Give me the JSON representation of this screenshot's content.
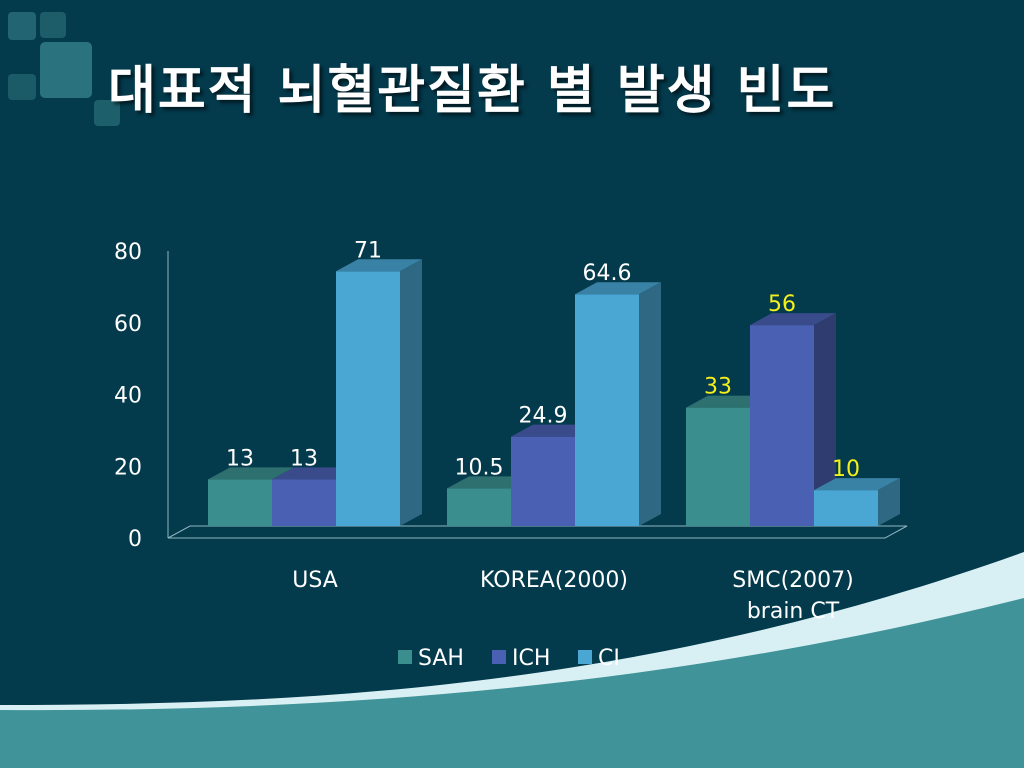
{
  "slide": {
    "title": "대표적 뇌혈관질환 별 발생 빈도"
  },
  "colors": {
    "background": "#033a4c",
    "SAH": "#3b8e8e",
    "ICH": "#4a60b3",
    "CI": "#4aa7d3",
    "label_default": "#ffffff",
    "label_highlight": "#f4f01c"
  },
  "chart_data": {
    "type": "bar",
    "style": "3d-clustered-column",
    "categories": [
      "USA",
      "KOREA(2000)",
      "SMC(2007)\nbrain CT"
    ],
    "series": [
      {
        "name": "SAH",
        "values": [
          13,
          10.5,
          33
        ]
      },
      {
        "name": "ICH",
        "values": [
          13,
          24.9,
          56
        ]
      },
      {
        "name": "CI",
        "values": [
          71,
          64.6,
          10
        ]
      }
    ],
    "data_labels": [
      [
        "13",
        "13",
        "71"
      ],
      [
        "10.5",
        "24.9",
        "64.6"
      ],
      [
        "33",
        "56",
        "10"
      ]
    ],
    "highlighted_category": "SMC(2007)\nbrain CT",
    "ylim": [
      0,
      80
    ],
    "yticks": [
      0,
      20,
      40,
      60,
      80
    ],
    "grid": false,
    "legend": "bottom",
    "title": "",
    "xlabel": "",
    "ylabel": ""
  }
}
